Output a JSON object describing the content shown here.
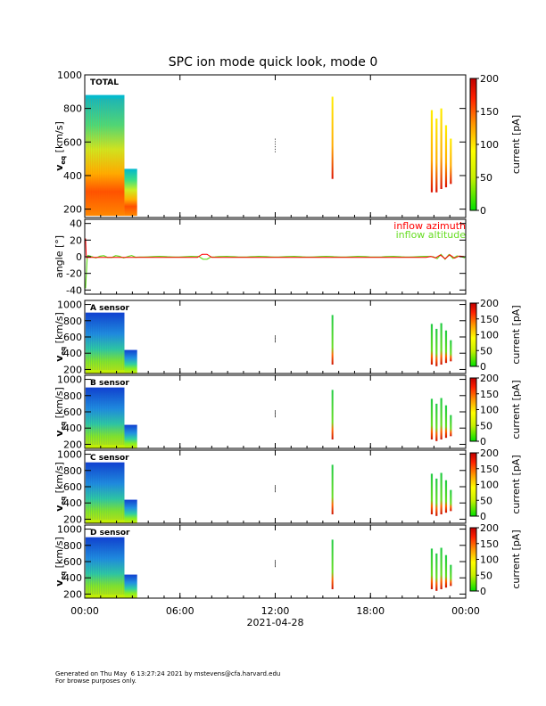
{
  "chart_data": {
    "title": "SPC ion mode quick look, mode 0",
    "date_label": "2021-04-28",
    "x_tick_labels": [
      "00:00",
      "06:00",
      "12:00",
      "18:00",
      "00:00"
    ],
    "panels": [
      {
        "label": "TOTAL",
        "type": "heatmap",
        "ylabel": "v_eq [km/s]",
        "ylabel_main": "v",
        "ylabel_sub": "eq",
        "ylabel_unit": " [km/s]",
        "ylim": [
          150,
          1000
        ],
        "yticks": [
          200,
          400,
          600,
          800,
          1000
        ],
        "colorbar": {
          "label": "current [pA]",
          "range": [
            0,
            200
          ],
          "ticks": [
            0,
            50,
            100,
            150,
            200
          ]
        },
        "x_range": [
          0,
          24
        ]
      },
      {
        "label": "",
        "type": "line",
        "ylabel": "angle [°]",
        "ylim": [
          -45,
          45
        ],
        "yticks": [
          -40,
          -20,
          0,
          20,
          40
        ],
        "series": [
          {
            "name": "inflow azimuth",
            "color": "#ff0000"
          },
          {
            "name": "inflow altitude",
            "color": "#66dd22"
          }
        ]
      },
      {
        "label": "A sensor",
        "type": "heatmap",
        "ylabel_main": "v",
        "ylabel_sub": "eq",
        "ylabel_unit": " [km/s]",
        "ylim": [
          150,
          1050
        ],
        "yticks": [
          200,
          400,
          600,
          800,
          1000
        ],
        "colorbar": {
          "label": "current [pA]",
          "range": [
            0,
            200
          ],
          "ticks": [
            0,
            50,
            100,
            150,
            200
          ]
        }
      },
      {
        "label": "B sensor",
        "type": "heatmap",
        "ylabel_main": "v",
        "ylabel_sub": "eq",
        "ylabel_unit": " [km/s]",
        "ylim": [
          150,
          1050
        ],
        "yticks": [
          200,
          400,
          600,
          800,
          1000
        ],
        "colorbar": {
          "label": "current [pA]",
          "range": [
            0,
            200
          ],
          "ticks": [
            0,
            50,
            100,
            150,
            200
          ]
        }
      },
      {
        "label": "C sensor",
        "type": "heatmap",
        "ylabel_main": "v",
        "ylabel_sub": "eq",
        "ylabel_unit": " [km/s]",
        "ylim": [
          150,
          1050
        ],
        "yticks": [
          200,
          400,
          600,
          800,
          1000
        ],
        "colorbar": {
          "label": "current [pA]",
          "range": [
            0,
            200
          ],
          "ticks": [
            0,
            50,
            100,
            150,
            200
          ]
        }
      },
      {
        "label": "D sensor",
        "type": "heatmap",
        "ylabel_main": "v",
        "ylabel_sub": "eq",
        "ylabel_unit": " [km/s]",
        "ylim": [
          150,
          1050
        ],
        "yticks": [
          200,
          400,
          600,
          800,
          1000
        ],
        "colorbar": {
          "label": "current [pA]",
          "range": [
            0,
            200
          ],
          "ticks": [
            0,
            50,
            100,
            150,
            200
          ]
        }
      }
    ]
  },
  "footer": {
    "line1": "Generated on Thu May  6 13:27:24 2021 by mstevens@cfa.harvard.edu",
    "line2": "For browse purposes only."
  }
}
